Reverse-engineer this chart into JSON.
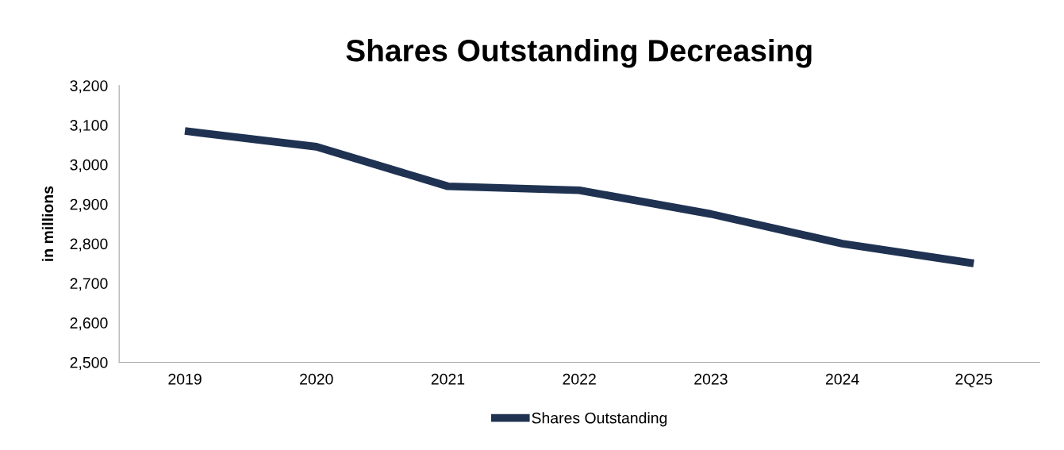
{
  "chart_data": {
    "type": "line",
    "title": "Shares Outstanding Decreasing",
    "ylabel": "in millions",
    "categories": [
      "2019",
      "2020",
      "2021",
      "2022",
      "2023",
      "2024",
      "2Q25"
    ],
    "series": [
      {
        "name": "Shares Outstanding",
        "color": "#1f3251",
        "values": [
          3085,
          3045,
          2945,
          2935,
          2875,
          2800,
          2750
        ]
      }
    ],
    "ylim": [
      2500,
      3200
    ],
    "yticks": [
      {
        "value": 2500,
        "label": "2,500"
      },
      {
        "value": 2600,
        "label": "2,600"
      },
      {
        "value": 2700,
        "label": "2,700"
      },
      {
        "value": 2800,
        "label": "2,800"
      },
      {
        "value": 2900,
        "label": "2,900"
      },
      {
        "value": 3000,
        "label": "3,000"
      },
      {
        "value": 3100,
        "label": "3,100"
      },
      {
        "value": 3200,
        "label": "3,200"
      }
    ],
    "grid": false,
    "legend": "bottom",
    "marker": "none",
    "line_style": "solid"
  }
}
